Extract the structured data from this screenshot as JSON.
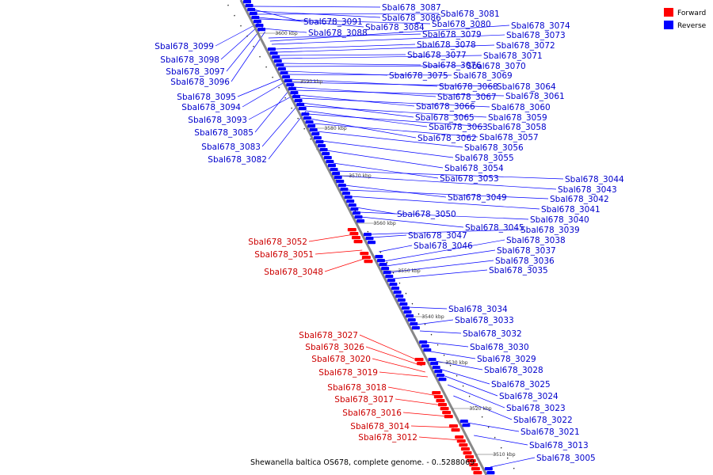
{
  "caption": "Shewanella baltica OS678, complete genome. - 0..5288069",
  "legend": [
    {
      "label": "Forward",
      "color": "#ff0000"
    },
    {
      "label": "Reverse",
      "color": "#0000ff"
    }
  ],
  "colors": {
    "forward": "#ff0000",
    "forward_label": "#cc0000",
    "reverse": "#0000ff",
    "reverse_label": "#0000cc",
    "backbone": "#888888"
  },
  "ticks": [
    "3600 kbp",
    "3590 kbp",
    "3580 kbp",
    "3570 kbp",
    "3560 kbp",
    "3550 kbp",
    "3540 kbp",
    "3530 kbp",
    "3520 kbp",
    "3510 kbp"
  ],
  "genes": [
    {
      "name": "Sbal678_3099",
      "strand": "reverse"
    },
    {
      "name": "Sbal678_3098",
      "strand": "reverse"
    },
    {
      "name": "Sbal678_3097",
      "strand": "reverse"
    },
    {
      "name": "Sbal678_3096",
      "strand": "reverse"
    },
    {
      "name": "Sbal678_3095",
      "strand": "reverse"
    },
    {
      "name": "Sbal678_3094",
      "strand": "reverse"
    },
    {
      "name": "Sbal678_3093",
      "strand": "reverse"
    },
    {
      "name": "Sbal678_3085",
      "strand": "reverse"
    },
    {
      "name": "Sbal678_3083",
      "strand": "reverse"
    },
    {
      "name": "Sbal678_3082",
      "strand": "reverse"
    },
    {
      "name": "Sbal678_3087",
      "strand": "reverse"
    },
    {
      "name": "Sbal678_3086",
      "strand": "reverse"
    },
    {
      "name": "Sbal678_3091",
      "strand": "reverse"
    },
    {
      "name": "Sbal678_3081",
      "strand": "reverse"
    },
    {
      "name": "Sbal678_3084",
      "strand": "reverse"
    },
    {
      "name": "Sbal678_3080",
      "strand": "reverse"
    },
    {
      "name": "Sbal678_3088",
      "strand": "reverse"
    },
    {
      "name": "Sbal678_3079",
      "strand": "reverse"
    },
    {
      "name": "Sbal678_3074",
      "strand": "reverse"
    },
    {
      "name": "Sbal678_3073",
      "strand": "reverse"
    },
    {
      "name": "Sbal678_3078",
      "strand": "reverse"
    },
    {
      "name": "Sbal678_3072",
      "strand": "reverse"
    },
    {
      "name": "Sbal678_3077",
      "strand": "reverse"
    },
    {
      "name": "Sbal678_3071",
      "strand": "reverse"
    },
    {
      "name": "Sbal678_3076",
      "strand": "reverse"
    },
    {
      "name": "Sbal678_3070",
      "strand": "reverse"
    },
    {
      "name": "Sbal678_3075",
      "strand": "reverse"
    },
    {
      "name": "Sbal678_3069",
      "strand": "reverse"
    },
    {
      "name": "Sbal678_3068",
      "strand": "reverse"
    },
    {
      "name": "Sbal678_3064",
      "strand": "reverse"
    },
    {
      "name": "Sbal678_3067",
      "strand": "reverse"
    },
    {
      "name": "Sbal678_3061",
      "strand": "reverse"
    },
    {
      "name": "Sbal678_3066",
      "strand": "reverse"
    },
    {
      "name": "Sbal678_3060",
      "strand": "reverse"
    },
    {
      "name": "Sbal678_3065",
      "strand": "reverse"
    },
    {
      "name": "Sbal678_3059",
      "strand": "reverse"
    },
    {
      "name": "Sbal678_3063",
      "strand": "reverse"
    },
    {
      "name": "Sbal678_3058",
      "strand": "reverse"
    },
    {
      "name": "Sbal678_3062",
      "strand": "reverse"
    },
    {
      "name": "Sbal678_3057",
      "strand": "reverse"
    },
    {
      "name": "Sbal678_3056",
      "strand": "reverse"
    },
    {
      "name": "Sbal678_3055",
      "strand": "reverse"
    },
    {
      "name": "Sbal678_3054",
      "strand": "reverse"
    },
    {
      "name": "Sbal678_3053",
      "strand": "reverse"
    },
    {
      "name": "Sbal678_3044",
      "strand": "reverse"
    },
    {
      "name": "Sbal678_3043",
      "strand": "reverse"
    },
    {
      "name": "Sbal678_3049",
      "strand": "reverse"
    },
    {
      "name": "Sbal678_3042",
      "strand": "reverse"
    },
    {
      "name": "Sbal678_3041",
      "strand": "reverse"
    },
    {
      "name": "Sbal678_3050",
      "strand": "reverse"
    },
    {
      "name": "Sbal678_3040",
      "strand": "reverse"
    },
    {
      "name": "Sbal678_3045",
      "strand": "reverse"
    },
    {
      "name": "Sbal678_3039",
      "strand": "reverse"
    },
    {
      "name": "Sbal678_3047",
      "strand": "reverse"
    },
    {
      "name": "Sbal678_3038",
      "strand": "reverse"
    },
    {
      "name": "Sbal678_3046",
      "strand": "reverse"
    },
    {
      "name": "Sbal678_3037",
      "strand": "reverse"
    },
    {
      "name": "Sbal678_3036",
      "strand": "reverse"
    },
    {
      "name": "Sbal678_3035",
      "strand": "reverse"
    },
    {
      "name": "Sbal678_3034",
      "strand": "reverse"
    },
    {
      "name": "Sbal678_3033",
      "strand": "reverse"
    },
    {
      "name": "Sbal678_3032",
      "strand": "reverse"
    },
    {
      "name": "Sbal678_3030",
      "strand": "reverse"
    },
    {
      "name": "Sbal678_3029",
      "strand": "reverse"
    },
    {
      "name": "Sbal678_3028",
      "strand": "reverse"
    },
    {
      "name": "Sbal678_3025",
      "strand": "reverse"
    },
    {
      "name": "Sbal678_3024",
      "strand": "reverse"
    },
    {
      "name": "Sbal678_3023",
      "strand": "reverse"
    },
    {
      "name": "Sbal678_3022",
      "strand": "reverse"
    },
    {
      "name": "Sbal678_3021",
      "strand": "reverse"
    },
    {
      "name": "Sbal678_3013",
      "strand": "reverse"
    },
    {
      "name": "Sbal678_3005",
      "strand": "reverse"
    },
    {
      "name": "Sbal678_3052",
      "strand": "forward"
    },
    {
      "name": "Sbal678_3051",
      "strand": "forward"
    },
    {
      "name": "Sbal678_3048",
      "strand": "forward"
    },
    {
      "name": "Sbal678_3027",
      "strand": "forward"
    },
    {
      "name": "Sbal678_3026",
      "strand": "forward"
    },
    {
      "name": "Sbal678_3020",
      "strand": "forward"
    },
    {
      "name": "Sbal678_3019",
      "strand": "forward"
    },
    {
      "name": "Sbal678_3018",
      "strand": "forward"
    },
    {
      "name": "Sbal678_3017",
      "strand": "forward"
    },
    {
      "name": "Sbal678_3016",
      "strand": "forward"
    },
    {
      "name": "Sbal678_3014",
      "strand": "forward"
    },
    {
      "name": "Sbal678_3012",
      "strand": "forward"
    }
  ]
}
